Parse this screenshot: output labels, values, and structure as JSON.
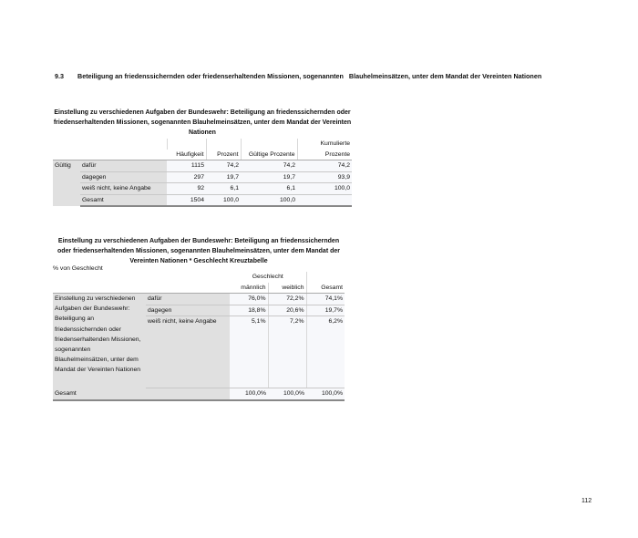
{
  "section": {
    "number": "9.3",
    "title": "Beteiligung an friedenssichernden oder friedenserhaltenden Missionen, sogenannten   Blauhelmeinsätzen, unter dem Mandat der Vereinten Nationen"
  },
  "table1": {
    "title": "Einstellung zu verschiedenen Aufgaben der Bundeswehr: Beteiligung an friedenssichernden oder friedenserhaltenden Missionen, sogenannten Blauhelmeinsätzen, unter dem Mandat der Vereinten Nationen",
    "headers": [
      "Häufigkeit",
      "Prozent",
      "Gültige Prozente",
      "Kumulierte",
      "Prozente"
    ],
    "group": "Gültig",
    "rows": [
      {
        "label": "dafür",
        "values": [
          "1115",
          "74,2",
          "74,2",
          "74,2"
        ]
      },
      {
        "label": "dagegen",
        "values": [
          "297",
          "19,7",
          "19,7",
          "93,9"
        ]
      },
      {
        "label": "weiß nicht, keine Angabe",
        "values": [
          "92",
          "6,1",
          "6,1",
          "100,0"
        ]
      },
      {
        "label": "Gesamt",
        "values": [
          "1504",
          "100,0",
          "100,0",
          ""
        ]
      }
    ]
  },
  "table2": {
    "title": "Einstellung zu verschiedenen Aufgaben der Bundeswehr: Beteiligung an friedenssichernden oder friedenserhaltenden Missionen, sogenannten Blauhelmeinsätzen, unter dem Mandat der Vereinten Nationen * Geschlecht Kreuztabelle",
    "subtitle": "% von Geschlecht",
    "group_header": "Geschlecht",
    "headers": [
      "männlich",
      "weiblich",
      "Gesamt"
    ],
    "row_label": "Einstellung zu verschiedenen Aufgaben der Bundeswehr: Beteiligung an friedenssichernden oder friedenserhaltenden Missionen, sogenannten Blauhelmeinsätzen, unter dem Mandat der Vereinten Nationen",
    "rows": [
      {
        "label": "dafür",
        "values": [
          "76,0%",
          "72,2%",
          "74,1%"
        ]
      },
      {
        "label": "dagegen",
        "values": [
          "18,8%",
          "20,6%",
          "19,7%"
        ]
      },
      {
        "label": "weiß nicht, keine Angabe",
        "values": [
          "5,1%",
          "7,2%",
          "6,2%"
        ]
      }
    ],
    "total": {
      "label": "Gesamt",
      "values": [
        "100,0%",
        "100,0%",
        "100,0%"
      ]
    }
  },
  "page_number": "112"
}
